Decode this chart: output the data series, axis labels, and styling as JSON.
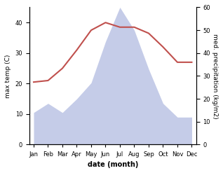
{
  "months": [
    "Jan",
    "Feb",
    "Mar",
    "Apr",
    "May",
    "Jun",
    "Jul",
    "Aug",
    "Sep",
    "Oct",
    "Nov",
    "Dec"
  ],
  "temperature": [
    20.5,
    21.0,
    25.0,
    31.0,
    37.5,
    40.0,
    38.5,
    38.5,
    36.5,
    32.0,
    27.0,
    27.0
  ],
  "precipitation": [
    14.0,
    18.0,
    14.0,
    20.0,
    27.0,
    45.0,
    60.0,
    50.0,
    33.0,
    18.0,
    12.0,
    12.0
  ],
  "temp_color": "#c0504d",
  "precip_fill_color": "#c5cce8",
  "temp_ylim": [
    0,
    45
  ],
  "precip_ylim": [
    0,
    60
  ],
  "temp_yticks": [
    0,
    10,
    20,
    30,
    40
  ],
  "precip_yticks": [
    0,
    10,
    20,
    30,
    40,
    50,
    60
  ],
  "ylabel_left": "max temp (C)",
  "ylabel_right": "med. precipitation (kg/m2)",
  "xlabel": "date (month)",
  "fig_width": 3.18,
  "fig_height": 2.47,
  "dpi": 100
}
